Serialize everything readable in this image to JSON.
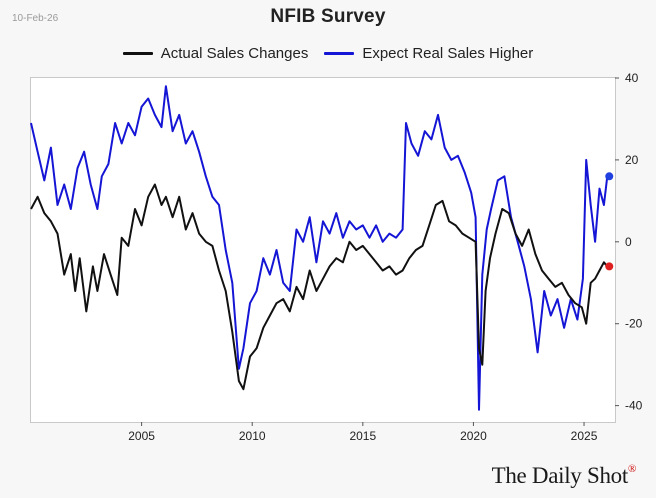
{
  "header": {
    "date": "10-Feb-26",
    "title": "NFIB Survey"
  },
  "brand": {
    "name": "The Daily Shot",
    "mark": "®"
  },
  "colors": {
    "actual": "#111111",
    "expect": "#1515d6",
    "actual_end": "#e02020",
    "expect_end": "#2040e0"
  },
  "chart_data": {
    "type": "line",
    "title": "NFIB Survey",
    "xlabel": "",
    "ylabel": "",
    "x_range": [
      2000.0,
      2026.4
    ],
    "y_range": [
      -44,
      40
    ],
    "y_ticks": [
      40,
      20,
      0,
      -20,
      -40
    ],
    "x_ticks": [
      2005,
      2010,
      2015,
      2020,
      2025
    ],
    "y_axis_side": "right",
    "legend_position": "top",
    "series": [
      {
        "name": "Actual Sales Changes",
        "color": "#111111",
        "points": [
          [
            2000.0,
            8
          ],
          [
            2000.3,
            11
          ],
          [
            2000.6,
            7
          ],
          [
            2000.9,
            5
          ],
          [
            2001.2,
            2
          ],
          [
            2001.5,
            -8
          ],
          [
            2001.8,
            -3
          ],
          [
            2002.0,
            -12
          ],
          [
            2002.2,
            -4
          ],
          [
            2002.5,
            -17
          ],
          [
            2002.8,
            -6
          ],
          [
            2003.0,
            -12
          ],
          [
            2003.3,
            -3
          ],
          [
            2003.6,
            -8
          ],
          [
            2003.9,
            -13
          ],
          [
            2004.1,
            1
          ],
          [
            2004.4,
            -1
          ],
          [
            2004.7,
            8
          ],
          [
            2005.0,
            4
          ],
          [
            2005.3,
            11
          ],
          [
            2005.6,
            14
          ],
          [
            2005.9,
            9
          ],
          [
            2006.1,
            11
          ],
          [
            2006.4,
            6
          ],
          [
            2006.7,
            11
          ],
          [
            2007.0,
            3
          ],
          [
            2007.3,
            7
          ],
          [
            2007.6,
            2
          ],
          [
            2007.9,
            0
          ],
          [
            2008.2,
            -1
          ],
          [
            2008.5,
            -7
          ],
          [
            2008.8,
            -12
          ],
          [
            2009.1,
            -22
          ],
          [
            2009.4,
            -34
          ],
          [
            2009.6,
            -36
          ],
          [
            2009.9,
            -28
          ],
          [
            2010.2,
            -26
          ],
          [
            2010.5,
            -21
          ],
          [
            2010.8,
            -18
          ],
          [
            2011.1,
            -15
          ],
          [
            2011.4,
            -14
          ],
          [
            2011.7,
            -17
          ],
          [
            2012.0,
            -11
          ],
          [
            2012.3,
            -14
          ],
          [
            2012.6,
            -7
          ],
          [
            2012.9,
            -12
          ],
          [
            2013.2,
            -9
          ],
          [
            2013.5,
            -6
          ],
          [
            2013.8,
            -4
          ],
          [
            2014.1,
            -5
          ],
          [
            2014.4,
            0
          ],
          [
            2014.7,
            -2
          ],
          [
            2015.0,
            -1
          ],
          [
            2015.3,
            -3
          ],
          [
            2015.6,
            -5
          ],
          [
            2015.9,
            -7
          ],
          [
            2016.2,
            -6
          ],
          [
            2016.5,
            -8
          ],
          [
            2016.8,
            -7
          ],
          [
            2017.1,
            -4
          ],
          [
            2017.4,
            -2
          ],
          [
            2017.7,
            -1
          ],
          [
            2018.0,
            4
          ],
          [
            2018.3,
            9
          ],
          [
            2018.6,
            10
          ],
          [
            2018.9,
            5
          ],
          [
            2019.2,
            4
          ],
          [
            2019.5,
            2
          ],
          [
            2019.8,
            1
          ],
          [
            2020.1,
            0
          ],
          [
            2020.25,
            -26
          ],
          [
            2020.4,
            -30
          ],
          [
            2020.55,
            -12
          ],
          [
            2020.75,
            -4
          ],
          [
            2021.0,
            2
          ],
          [
            2021.3,
            8
          ],
          [
            2021.6,
            7
          ],
          [
            2021.9,
            2
          ],
          [
            2022.2,
            -1
          ],
          [
            2022.5,
            3
          ],
          [
            2022.8,
            -3
          ],
          [
            2023.1,
            -7
          ],
          [
            2023.4,
            -9
          ],
          [
            2023.7,
            -11
          ],
          [
            2024.0,
            -10
          ],
          [
            2024.3,
            -13
          ],
          [
            2024.6,
            -15
          ],
          [
            2024.9,
            -16
          ],
          [
            2025.1,
            -20
          ],
          [
            2025.3,
            -10
          ],
          [
            2025.5,
            -9
          ],
          [
            2025.7,
            -7
          ],
          [
            2025.9,
            -5
          ],
          [
            2026.05,
            -6
          ]
        ]
      },
      {
        "name": "Expect Real Sales Higher",
        "color": "#1515d6",
        "points": [
          [
            2000.0,
            29
          ],
          [
            2000.3,
            22
          ],
          [
            2000.6,
            15
          ],
          [
            2000.9,
            23
          ],
          [
            2001.2,
            9
          ],
          [
            2001.5,
            14
          ],
          [
            2001.8,
            8
          ],
          [
            2002.1,
            18
          ],
          [
            2002.4,
            22
          ],
          [
            2002.7,
            14
          ],
          [
            2003.0,
            8
          ],
          [
            2003.2,
            16
          ],
          [
            2003.5,
            19
          ],
          [
            2003.8,
            29
          ],
          [
            2004.1,
            24
          ],
          [
            2004.4,
            29
          ],
          [
            2004.7,
            26
          ],
          [
            2005.0,
            33
          ],
          [
            2005.3,
            35
          ],
          [
            2005.6,
            31
          ],
          [
            2005.9,
            28
          ],
          [
            2006.1,
            38
          ],
          [
            2006.4,
            27
          ],
          [
            2006.7,
            31
          ],
          [
            2007.0,
            24
          ],
          [
            2007.3,
            27
          ],
          [
            2007.6,
            22
          ],
          [
            2007.9,
            16
          ],
          [
            2008.2,
            11
          ],
          [
            2008.5,
            9
          ],
          [
            2008.8,
            -2
          ],
          [
            2009.1,
            -10
          ],
          [
            2009.4,
            -31
          ],
          [
            2009.6,
            -26
          ],
          [
            2009.9,
            -15
          ],
          [
            2010.2,
            -12
          ],
          [
            2010.5,
            -4
          ],
          [
            2010.8,
            -8
          ],
          [
            2011.1,
            -2
          ],
          [
            2011.4,
            -10
          ],
          [
            2011.7,
            -12
          ],
          [
            2012.0,
            3
          ],
          [
            2012.3,
            0
          ],
          [
            2012.6,
            6
          ],
          [
            2012.9,
            -5
          ],
          [
            2013.2,
            5
          ],
          [
            2013.5,
            2
          ],
          [
            2013.8,
            7
          ],
          [
            2014.1,
            1
          ],
          [
            2014.4,
            5
          ],
          [
            2014.7,
            3
          ],
          [
            2015.0,
            4
          ],
          [
            2015.3,
            1
          ],
          [
            2015.6,
            4
          ],
          [
            2015.9,
            0
          ],
          [
            2016.2,
            2
          ],
          [
            2016.5,
            1
          ],
          [
            2016.8,
            3
          ],
          [
            2016.95,
            29
          ],
          [
            2017.2,
            24
          ],
          [
            2017.5,
            21
          ],
          [
            2017.8,
            27
          ],
          [
            2018.1,
            25
          ],
          [
            2018.4,
            31
          ],
          [
            2018.7,
            23
          ],
          [
            2019.0,
            20
          ],
          [
            2019.3,
            21
          ],
          [
            2019.6,
            17
          ],
          [
            2019.9,
            12
          ],
          [
            2020.1,
            6
          ],
          [
            2020.25,
            -41
          ],
          [
            2020.4,
            -8
          ],
          [
            2020.6,
            3
          ],
          [
            2020.8,
            8
          ],
          [
            2021.1,
            15
          ],
          [
            2021.4,
            16
          ],
          [
            2021.7,
            6
          ],
          [
            2022.0,
            0
          ],
          [
            2022.3,
            -6
          ],
          [
            2022.6,
            -14
          ],
          [
            2022.9,
            -27
          ],
          [
            2023.2,
            -12
          ],
          [
            2023.5,
            -18
          ],
          [
            2023.8,
            -14
          ],
          [
            2024.1,
            -21
          ],
          [
            2024.4,
            -14
          ],
          [
            2024.7,
            -19
          ],
          [
            2024.95,
            -9
          ],
          [
            2025.1,
            20
          ],
          [
            2025.3,
            9
          ],
          [
            2025.5,
            0
          ],
          [
            2025.7,
            13
          ],
          [
            2025.9,
            9
          ],
          [
            2026.05,
            16
          ]
        ]
      }
    ]
  }
}
